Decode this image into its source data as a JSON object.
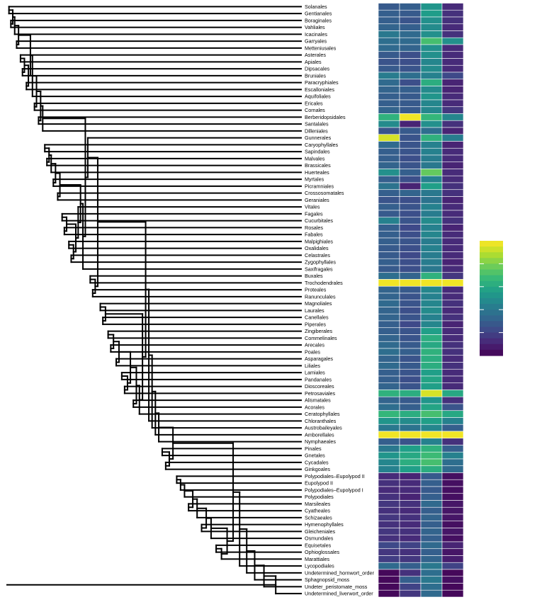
{
  "chart_data": {
    "type": "heatmap",
    "title": "",
    "xlabel": "",
    "ylabel": "",
    "columns": 4,
    "colormap": "viridis",
    "color_range": [
      0,
      1
    ],
    "colorbar_ticks": 4,
    "legend_placement": "right",
    "tips": [
      {
        "name": "Solanales",
        "values": [
          0.28,
          0.3,
          0.52,
          0.12
        ]
      },
      {
        "name": "Gentianales",
        "values": [
          0.3,
          0.28,
          0.55,
          0.14
        ]
      },
      {
        "name": "Boraginales",
        "values": [
          0.3,
          0.26,
          0.5,
          0.14
        ]
      },
      {
        "name": "Vahliales",
        "values": [
          0.32,
          0.3,
          0.48,
          0.12
        ]
      },
      {
        "name": "Icacinales",
        "values": [
          0.4,
          0.34,
          0.5,
          0.14
        ]
      },
      {
        "name": "Garryales",
        "values": [
          0.36,
          0.34,
          0.7,
          0.5
        ]
      },
      {
        "name": "Metteniusales",
        "values": [
          0.34,
          0.32,
          0.5,
          0.12
        ]
      },
      {
        "name": "Asterales",
        "values": [
          0.28,
          0.24,
          0.5,
          0.12
        ]
      },
      {
        "name": "Apiales",
        "values": [
          0.26,
          0.24,
          0.46,
          0.12
        ]
      },
      {
        "name": "Dipsacales",
        "values": [
          0.28,
          0.26,
          0.48,
          0.12
        ]
      },
      {
        "name": "Bruniales",
        "values": [
          0.42,
          0.36,
          0.44,
          0.22
        ]
      },
      {
        "name": "Paracryphiales",
        "values": [
          0.34,
          0.24,
          0.62,
          0.1
        ]
      },
      {
        "name": "Escalloniales",
        "values": [
          0.32,
          0.3,
          0.48,
          0.1
        ]
      },
      {
        "name": "Aquifoliales",
        "values": [
          0.3,
          0.28,
          0.52,
          0.12
        ]
      },
      {
        "name": "Ericales",
        "values": [
          0.3,
          0.28,
          0.46,
          0.12
        ]
      },
      {
        "name": "Cornales",
        "values": [
          0.32,
          0.28,
          0.46,
          0.16
        ]
      },
      {
        "name": "Berberidopsidales",
        "values": [
          0.64,
          0.98,
          0.66,
          0.46
        ]
      },
      {
        "name": "Santalales",
        "values": [
          0.48,
          0.1,
          0.5,
          0.14
        ]
      },
      {
        "name": "Dilleniales",
        "values": [
          0.26,
          0.28,
          0.36,
          0.1
        ]
      },
      {
        "name": "Gunnerales",
        "values": [
          0.94,
          0.26,
          0.64,
          0.42
        ]
      },
      {
        "name": "Caryophyllales",
        "values": [
          0.34,
          0.26,
          0.44,
          0.1
        ]
      },
      {
        "name": "Sapindales",
        "values": [
          0.3,
          0.26,
          0.44,
          0.12
        ]
      },
      {
        "name": "Malvales",
        "values": [
          0.3,
          0.24,
          0.42,
          0.12
        ]
      },
      {
        "name": "Brassicales",
        "values": [
          0.32,
          0.26,
          0.4,
          0.1
        ]
      },
      {
        "name": "Huerteales",
        "values": [
          0.5,
          0.3,
          0.76,
          0.12
        ]
      },
      {
        "name": "Myrtales",
        "values": [
          0.3,
          0.24,
          0.44,
          0.12
        ]
      },
      {
        "name": "Picramniales",
        "values": [
          0.38,
          0.1,
          0.56,
          0.14
        ]
      },
      {
        "name": "Crossosomatales",
        "values": [
          0.3,
          0.32,
          0.4,
          0.14
        ]
      },
      {
        "name": "Geraniales",
        "values": [
          0.26,
          0.24,
          0.38,
          0.1
        ]
      },
      {
        "name": "Vitales",
        "values": [
          0.3,
          0.26,
          0.44,
          0.12
        ]
      },
      {
        "name": "Fagales",
        "values": [
          0.28,
          0.24,
          0.42,
          0.12
        ]
      },
      {
        "name": "Cucurbitales",
        "values": [
          0.44,
          0.26,
          0.48,
          0.14
        ]
      },
      {
        "name": "Rosales",
        "values": [
          0.3,
          0.22,
          0.44,
          0.1
        ]
      },
      {
        "name": "Fabales",
        "values": [
          0.3,
          0.24,
          0.46,
          0.12
        ]
      },
      {
        "name": "Malpighiales",
        "values": [
          0.3,
          0.26,
          0.42,
          0.12
        ]
      },
      {
        "name": "Oxalidales",
        "values": [
          0.28,
          0.24,
          0.44,
          0.12
        ]
      },
      {
        "name": "Celastrales",
        "values": [
          0.28,
          0.22,
          0.42,
          0.12
        ]
      },
      {
        "name": "Zygophyllales",
        "values": [
          0.3,
          0.24,
          0.42,
          0.1
        ]
      },
      {
        "name": "Saxifragales",
        "values": [
          0.28,
          0.24,
          0.4,
          0.12
        ]
      },
      {
        "name": "Buxales",
        "values": [
          0.36,
          0.32,
          0.64,
          0.16
        ]
      },
      {
        "name": "Trochodendrales",
        "values": [
          0.98,
          0.98,
          0.98,
          0.98
        ]
      },
      {
        "name": "Proteales",
        "values": [
          0.32,
          0.28,
          0.46,
          0.12
        ]
      },
      {
        "name": "Ranunculales",
        "values": [
          0.32,
          0.26,
          0.44,
          0.12
        ]
      },
      {
        "name": "Magnoliales",
        "values": [
          0.34,
          0.26,
          0.46,
          0.14
        ]
      },
      {
        "name": "Laurales",
        "values": [
          0.32,
          0.24,
          0.48,
          0.12
        ]
      },
      {
        "name": "Canellales",
        "values": [
          0.32,
          0.26,
          0.44,
          0.14
        ]
      },
      {
        "name": "Piperales",
        "values": [
          0.3,
          0.22,
          0.46,
          0.1
        ]
      },
      {
        "name": "Zingiberales",
        "values": [
          0.3,
          0.26,
          0.56,
          0.12
        ]
      },
      {
        "name": "Commelinales",
        "values": [
          0.32,
          0.26,
          0.62,
          0.12
        ]
      },
      {
        "name": "Arecales",
        "values": [
          0.34,
          0.28,
          0.6,
          0.14
        ]
      },
      {
        "name": "Poales",
        "values": [
          0.36,
          0.3,
          0.64,
          0.14
        ]
      },
      {
        "name": "Asparagales",
        "values": [
          0.32,
          0.26,
          0.62,
          0.12
        ]
      },
      {
        "name": "Liliales",
        "values": [
          0.34,
          0.28,
          0.62,
          0.14
        ]
      },
      {
        "name": "Lamiales",
        "values": [
          0.3,
          0.26,
          0.56,
          0.12
        ]
      },
      {
        "name": "Pandanales",
        "values": [
          0.3,
          0.24,
          0.58,
          0.12
        ]
      },
      {
        "name": "Dioscoreales",
        "values": [
          0.32,
          0.26,
          0.56,
          0.12
        ]
      },
      {
        "name": "Petrosaviales",
        "values": [
          0.64,
          0.62,
          0.94,
          0.6
        ]
      },
      {
        "name": "Alismatales",
        "values": [
          0.32,
          0.28,
          0.52,
          0.14
        ]
      },
      {
        "name": "Acorales",
        "values": [
          0.36,
          0.3,
          0.58,
          0.26
        ]
      },
      {
        "name": "Ceratophyllales",
        "values": [
          0.66,
          0.62,
          0.7,
          0.6
        ]
      },
      {
        "name": "Chloranthales",
        "values": [
          0.52,
          0.48,
          0.56,
          0.44
        ]
      },
      {
        "name": "Austrobaileyales",
        "values": [
          0.4,
          0.38,
          0.46,
          0.3
        ]
      },
      {
        "name": "Amborellales",
        "values": [
          0.98,
          0.98,
          0.98,
          0.98
        ]
      },
      {
        "name": "Nymphaeales",
        "values": [
          0.3,
          0.26,
          0.44,
          0.14
        ]
      },
      {
        "name": "Pinales",
        "values": [
          0.4,
          0.56,
          0.64,
          0.3
        ]
      },
      {
        "name": "Gnetales",
        "values": [
          0.52,
          0.6,
          0.68,
          0.44
        ]
      },
      {
        "name": "Cycadales",
        "values": [
          0.46,
          0.62,
          0.7,
          0.36
        ]
      },
      {
        "name": "Ginkgoales",
        "values": [
          0.44,
          0.56,
          0.62,
          0.34
        ]
      },
      {
        "name": "Polypodiales–Eupolypod II",
        "values": [
          0.12,
          0.1,
          0.28,
          0.04
        ]
      },
      {
        "name": "Eupolypod II",
        "values": [
          0.14,
          0.12,
          0.3,
          0.04
        ]
      },
      {
        "name": "Polypodiales–Eupolypod I",
        "values": [
          0.12,
          0.12,
          0.28,
          0.04
        ]
      },
      {
        "name": "Polypodiales",
        "values": [
          0.14,
          0.1,
          0.3,
          0.04
        ]
      },
      {
        "name": "Marsileales",
        "values": [
          0.16,
          0.14,
          0.34,
          0.06
        ]
      },
      {
        "name": "Cyatheales",
        "values": [
          0.14,
          0.12,
          0.3,
          0.06
        ]
      },
      {
        "name": "Schizaeales",
        "values": [
          0.16,
          0.14,
          0.32,
          0.06
        ]
      },
      {
        "name": "Hymenophyllales",
        "values": [
          0.14,
          0.12,
          0.3,
          0.04
        ]
      },
      {
        "name": "Gleicheniales",
        "values": [
          0.16,
          0.14,
          0.32,
          0.06
        ]
      },
      {
        "name": "Osmundales",
        "values": [
          0.14,
          0.12,
          0.3,
          0.04
        ]
      },
      {
        "name": "Equisetales",
        "values": [
          0.22,
          0.2,
          0.34,
          0.1
        ]
      },
      {
        "name": "Ophioglossales",
        "values": [
          0.16,
          0.14,
          0.3,
          0.06
        ]
      },
      {
        "name": "Marattiales",
        "values": [
          0.18,
          0.16,
          0.32,
          0.08
        ]
      },
      {
        "name": "Lycopodiales",
        "values": [
          0.34,
          0.3,
          0.4,
          0.2
        ]
      },
      {
        "name": "Undetermined_hornwort_order",
        "values": [
          0.02,
          0.14,
          0.36,
          0.02
        ]
      },
      {
        "name": "Sphagnopsid_moss",
        "values": [
          0.02,
          0.3,
          0.4,
          0.04
        ]
      },
      {
        "name": "Undeter_peristomate_moss",
        "values": [
          0.02,
          0.2,
          0.36,
          0.02
        ]
      },
      {
        "name": "Undetermined_liverwort_order",
        "values": [
          0.02,
          0.16,
          0.34,
          0.02
        ]
      }
    ],
    "tree": [
      [
        "Solanales",
        "Gentianales",
        1
      ],
      [
        "Boraginales",
        "Vahliales",
        2
      ],
      [
        0,
        1,
        3
      ],
      [
        "Icacinales",
        2,
        4
      ],
      [
        "Garryales",
        "Metteniusales",
        5
      ],
      [
        3,
        4,
        6
      ],
      [
        "Asterales",
        "Apiales",
        7
      ],
      [
        "Dipsacales",
        "Bruniales",
        8
      ],
      [
        6,
        7,
        9
      ],
      [
        "Paracryphiales",
        "Escalloniales",
        10
      ],
      [
        8,
        9,
        11
      ],
      [
        5,
        10,
        12
      ],
      [
        "Aquifoliales",
        11,
        13
      ],
      [
        "Ericales",
        "Cornales",
        14
      ],
      [
        12,
        13,
        15
      ],
      [
        "Berberidopsidales",
        "Santalales",
        16
      ],
      [
        15,
        14,
        17
      ],
      [
        "Dilleniales",
        16,
        18
      ],
      [
        "Caryophyllales",
        "Sapindales",
        19
      ],
      [
        "Malvales",
        "Brassicales",
        20
      ],
      [
        18,
        19,
        21
      ],
      [
        "Huerteales",
        20,
        22
      ],
      [
        "Myrtales",
        "Picramniales",
        23
      ],
      [
        21,
        22,
        24
      ],
      [
        "Crossosomatales",
        "Geraniales",
        25
      ],
      [
        23,
        24,
        26
      ],
      [
        "Fagales",
        "Cucurbitales",
        27
      ],
      [
        "Rosales",
        "Fabales",
        28
      ],
      [
        26,
        27,
        29
      ],
      [
        "Malpighiales",
        "Oxalidales",
        30
      ],
      [
        "Celastrales",
        "Zygophyllales",
        31
      ],
      [
        29,
        30,
        32
      ],
      [
        28,
        31,
        33
      ],
      [
        "Vitales",
        32,
        34
      ],
      [
        25,
        33,
        35
      ],
      [
        "Saxifragales",
        34,
        36
      ],
      [
        17,
        35,
        37
      ],
      [
        "Gunnerales",
        36,
        38
      ],
      [
        "Buxales",
        "Trochodendrales",
        39
      ],
      [
        "Proteales",
        "Ranunculales",
        40
      ],
      [
        38,
        39,
        41
      ],
      [
        37,
        40,
        42
      ],
      [
        "Magnoliales",
        "Laurales",
        43
      ],
      [
        "Canellales",
        "Piperales",
        44
      ],
      [
        42,
        43,
        45
      ],
      [
        "Zingiberales",
        "Commelinales",
        46
      ],
      [
        "Arecales",
        "Poales",
        47
      ],
      [
        45,
        46,
        48
      ],
      [
        "Asparagales",
        "Liliales",
        49
      ],
      [
        47,
        48,
        50
      ],
      [
        "Lamiales",
        "Pandanales",
        51
      ],
      [
        "Dioscoreales",
        "Petrosaviales",
        52
      ],
      [
        50,
        51,
        53
      ],
      [
        49,
        52,
        54
      ],
      [
        "Alismatales",
        "Acorales",
        55
      ],
      [
        53,
        54,
        56
      ],
      [
        "Ceratophyllales",
        55,
        57
      ],
      [
        44,
        56,
        58
      ],
      [
        41,
        57,
        59
      ],
      [
        "Chloranthales",
        58,
        60
      ],
      [
        "Austrobaileyales",
        59,
        61
      ],
      [
        "Amborellales",
        60,
        62
      ],
      [
        "Nymphaeales",
        61,
        63
      ],
      [
        "Pinales",
        "Gnetales",
        64
      ],
      [
        "Cycadales",
        "Ginkgoales",
        65
      ],
      [
        63,
        64,
        66
      ],
      [
        62,
        65,
        67
      ],
      [
        "Polypodiales–Eupolypod II",
        "Eupolypod II",
        68
      ],
      [
        "Polypodiales–Eupolypod I",
        67,
        69
      ],
      [
        "Polypodiales",
        68,
        70
      ],
      [
        "Marsileales",
        "Cyatheales",
        71
      ],
      [
        69,
        70,
        72
      ],
      [
        "Schizaeales",
        71,
        73
      ],
      [
        "Hymenophyllales",
        "Gleicheniales",
        74
      ],
      [
        72,
        73,
        75
      ],
      [
        "Osmundales",
        74,
        76
      ],
      [
        "Equisetales",
        "Ophioglossales",
        77
      ],
      [
        "Marattiales",
        76,
        78
      ],
      [
        75,
        77,
        79
      ],
      [
        66,
        78,
        80
      ],
      [
        "Lycopodiales",
        79,
        81
      ],
      [
        "Undetermined_hornwort_order",
        80,
        82
      ],
      [
        "Sphagnopsid_moss",
        81,
        83
      ],
      [
        "Undeter_peristomate_moss",
        82,
        84
      ],
      [
        "Undetermined_liverwort_order",
        83,
        85
      ]
    ]
  }
}
